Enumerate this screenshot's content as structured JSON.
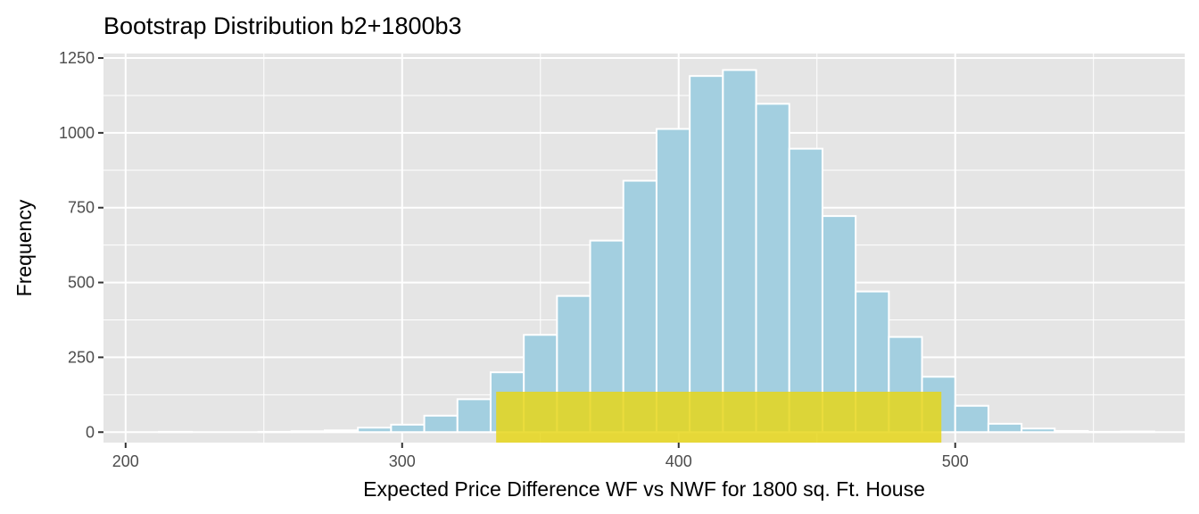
{
  "chart_data": {
    "type": "bar",
    "title": "Bootstrap Distribution b2+1800b3",
    "xlabel": "Expected Price Difference WF vs NWF for 1800 sq. Ft. House",
    "ylabel": "Frequency",
    "xlim": [
      192,
      583
    ],
    "ylim": [
      -35,
      1265
    ],
    "x_ticks": [
      200,
      300,
      400,
      500
    ],
    "y_ticks": [
      0,
      250,
      500,
      750,
      1000,
      1250
    ],
    "x_tick_labels": [
      "200",
      "300",
      "400",
      "500"
    ],
    "y_tick_labels": [
      "0",
      "250",
      "500",
      "750",
      "1000",
      "1250"
    ],
    "grid": true,
    "bin_width": 12,
    "bins": [
      {
        "x0": 200,
        "x1": 212,
        "count": 0
      },
      {
        "x0": 212,
        "x1": 224,
        "count": 1
      },
      {
        "x0": 224,
        "x1": 236,
        "count": 0
      },
      {
        "x0": 236,
        "x1": 248,
        "count": 0
      },
      {
        "x0": 248,
        "x1": 260,
        "count": 1
      },
      {
        "x0": 260,
        "x1": 272,
        "count": 3
      },
      {
        "x0": 272,
        "x1": 284,
        "count": 6
      },
      {
        "x0": 284,
        "x1": 296,
        "count": 15
      },
      {
        "x0": 296,
        "x1": 308,
        "count": 25
      },
      {
        "x0": 308,
        "x1": 320,
        "count": 55
      },
      {
        "x0": 320,
        "x1": 332,
        "count": 110
      },
      {
        "x0": 332,
        "x1": 344,
        "count": 200
      },
      {
        "x0": 344,
        "x1": 356,
        "count": 325
      },
      {
        "x0": 356,
        "x1": 368,
        "count": 455
      },
      {
        "x0": 368,
        "x1": 380,
        "count": 640
      },
      {
        "x0": 380,
        "x1": 392,
        "count": 840
      },
      {
        "x0": 392,
        "x1": 404,
        "count": 1013
      },
      {
        "x0": 404,
        "x1": 416,
        "count": 1190
      },
      {
        "x0": 416,
        "x1": 428,
        "count": 1210
      },
      {
        "x0": 428,
        "x1": 440,
        "count": 1097
      },
      {
        "x0": 440,
        "x1": 452,
        "count": 947
      },
      {
        "x0": 452,
        "x1": 464,
        "count": 722
      },
      {
        "x0": 464,
        "x1": 476,
        "count": 470
      },
      {
        "x0": 476,
        "x1": 488,
        "count": 318
      },
      {
        "x0": 488,
        "x1": 500,
        "count": 185
      },
      {
        "x0": 500,
        "x1": 512,
        "count": 88
      },
      {
        "x0": 512,
        "x1": 524,
        "count": 28
      },
      {
        "x0": 524,
        "x1": 536,
        "count": 12
      },
      {
        "x0": 536,
        "x1": 548,
        "count": 4
      },
      {
        "x0": 548,
        "x1": 560,
        "count": 1
      },
      {
        "x0": 560,
        "x1": 572,
        "count": 2
      }
    ],
    "interval": {
      "x_start": 334,
      "x_end": 495,
      "y_start": -35,
      "y_end": 135
    },
    "colors": {
      "panel": "#e5e5e5",
      "grid": "#ffffff",
      "bar_fill": "#a3cfe0",
      "bar_stroke": "#ffffff",
      "interval_fill": "#e6d61a",
      "tick": "#333333"
    }
  }
}
